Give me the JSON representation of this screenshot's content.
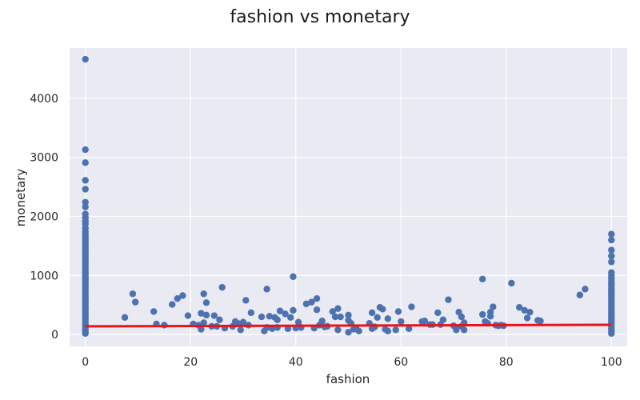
{
  "chart_data": {
    "type": "scatter",
    "title": "fashion vs monetary",
    "xlabel": "fashion",
    "ylabel": "monetary",
    "xlim": [
      -3,
      103
    ],
    "ylim": [
      -200,
      4850
    ],
    "x_ticks": [
      0,
      20,
      40,
      60,
      80,
      100
    ],
    "y_ticks": [
      0,
      1000,
      2000,
      3000,
      4000
    ],
    "grid": true,
    "legend": "none",
    "colors": {
      "points": "#4c72b0",
      "trend": "#e8141a",
      "background": "#eaeaf2",
      "grid": "#ffffff"
    },
    "trend_line": {
      "x": [
        0,
        100
      ],
      "y": [
        140,
        165
      ]
    },
    "series": [
      {
        "points": [
          [
            0,
            4660
          ],
          [
            0,
            3130
          ],
          [
            0,
            2910
          ],
          [
            0,
            2610
          ],
          [
            0,
            2460
          ],
          [
            0,
            2240
          ],
          [
            0,
            2160
          ],
          [
            0,
            2040
          ],
          [
            0,
            1980
          ],
          [
            0,
            1920
          ],
          [
            0,
            1870
          ],
          [
            0,
            1800
          ],
          [
            0,
            1740
          ],
          [
            0,
            1690
          ],
          [
            0,
            1650
          ],
          [
            0,
            1610
          ],
          [
            0,
            1570
          ],
          [
            0,
            1530
          ],
          [
            0,
            1490
          ],
          [
            0,
            1450
          ],
          [
            0,
            1410
          ],
          [
            0,
            1370
          ],
          [
            0,
            1330
          ],
          [
            0,
            1290
          ],
          [
            0,
            1250
          ],
          [
            0,
            1210
          ],
          [
            0,
            1170
          ],
          [
            0,
            1130
          ],
          [
            0,
            1090
          ],
          [
            0,
            1050
          ],
          [
            0,
            1010
          ],
          [
            0,
            970
          ],
          [
            0,
            930
          ],
          [
            0,
            890
          ],
          [
            0,
            850
          ],
          [
            0,
            810
          ],
          [
            0,
            770
          ],
          [
            0,
            730
          ],
          [
            0,
            690
          ],
          [
            0,
            650
          ],
          [
            0,
            610
          ],
          [
            0,
            570
          ],
          [
            0,
            530
          ],
          [
            0,
            490
          ],
          [
            0,
            450
          ],
          [
            0,
            410
          ],
          [
            0,
            370
          ],
          [
            0,
            330
          ],
          [
            0,
            290
          ],
          [
            0,
            250
          ],
          [
            0,
            210
          ],
          [
            0,
            170
          ],
          [
            0,
            130
          ],
          [
            0,
            90
          ],
          [
            0,
            50
          ],
          [
            0,
            20
          ],
          [
            100,
            1700
          ],
          [
            100,
            1600
          ],
          [
            100,
            1430
          ],
          [
            100,
            1330
          ],
          [
            100,
            1230
          ],
          [
            100,
            1050
          ],
          [
            100,
            1000
          ],
          [
            100,
            950
          ],
          [
            100,
            900
          ],
          [
            100,
            860
          ],
          [
            100,
            820
          ],
          [
            100,
            780
          ],
          [
            100,
            740
          ],
          [
            100,
            700
          ],
          [
            100,
            660
          ],
          [
            100,
            620
          ],
          [
            100,
            580
          ],
          [
            100,
            540
          ],
          [
            100,
            500
          ],
          [
            100,
            460
          ],
          [
            100,
            420
          ],
          [
            100,
            380
          ],
          [
            100,
            340
          ],
          [
            100,
            300
          ],
          [
            100,
            260
          ],
          [
            100,
            220
          ],
          [
            100,
            180
          ],
          [
            100,
            140
          ],
          [
            100,
            100
          ],
          [
            100,
            60
          ],
          [
            100,
            20
          ],
          [
            7.5,
            290
          ],
          [
            9,
            690
          ],
          [
            9.5,
            550
          ],
          [
            13,
            390
          ],
          [
            13.5,
            180
          ],
          [
            15,
            160
          ],
          [
            16.5,
            510
          ],
          [
            17.5,
            610
          ],
          [
            18.5,
            660
          ],
          [
            19.5,
            320
          ],
          [
            20.5,
            180
          ],
          [
            21.5,
            160
          ],
          [
            22,
            360
          ],
          [
            22,
            90
          ],
          [
            22.5,
            690
          ],
          [
            22.5,
            200
          ],
          [
            23,
            330
          ],
          [
            23,
            540
          ],
          [
            24,
            140
          ],
          [
            24.5,
            320
          ],
          [
            25,
            140
          ],
          [
            25.5,
            250
          ],
          [
            26,
            800
          ],
          [
            26.5,
            110
          ],
          [
            28,
            140
          ],
          [
            28.5,
            220
          ],
          [
            29,
            190
          ],
          [
            29.5,
            80
          ],
          [
            30,
            210
          ],
          [
            30.5,
            580
          ],
          [
            31,
            160
          ],
          [
            31.5,
            370
          ],
          [
            33.5,
            300
          ],
          [
            34,
            60
          ],
          [
            34.5,
            770
          ],
          [
            34.5,
            120
          ],
          [
            35,
            310
          ],
          [
            35.5,
            100
          ],
          [
            36,
            290
          ],
          [
            36.5,
            250
          ],
          [
            36.5,
            120
          ],
          [
            37,
            400
          ],
          [
            38,
            350
          ],
          [
            38.5,
            100
          ],
          [
            39,
            290
          ],
          [
            39.5,
            410
          ],
          [
            39.5,
            980
          ],
          [
            40,
            110
          ],
          [
            40.5,
            210
          ],
          [
            41,
            120
          ],
          [
            42,
            520
          ],
          [
            43,
            550
          ],
          [
            43.5,
            110
          ],
          [
            44,
            610
          ],
          [
            44,
            420
          ],
          [
            44.5,
            160
          ],
          [
            45,
            230
          ],
          [
            45.5,
            130
          ],
          [
            46,
            140
          ],
          [
            47,
            390
          ],
          [
            47.5,
            300
          ],
          [
            48,
            440
          ],
          [
            48,
            80
          ],
          [
            48.5,
            300
          ],
          [
            50,
            330
          ],
          [
            50,
            240
          ],
          [
            50,
            40
          ],
          [
            50.5,
            190
          ],
          [
            51,
            90
          ],
          [
            51.5,
            100
          ],
          [
            52,
            60
          ],
          [
            54,
            190
          ],
          [
            54.5,
            370
          ],
          [
            54.5,
            100
          ],
          [
            55,
            130
          ],
          [
            55.5,
            290
          ],
          [
            56,
            460
          ],
          [
            56.5,
            430
          ],
          [
            57,
            90
          ],
          [
            57.5,
            270
          ],
          [
            57.5,
            60
          ],
          [
            59,
            80
          ],
          [
            59.5,
            390
          ],
          [
            60,
            220
          ],
          [
            61.5,
            100
          ],
          [
            62,
            470
          ],
          [
            64,
            220
          ],
          [
            64.5,
            230
          ],
          [
            65.5,
            170
          ],
          [
            66,
            170
          ],
          [
            67,
            370
          ],
          [
            67.5,
            170
          ],
          [
            68,
            250
          ],
          [
            69,
            590
          ],
          [
            70,
            150
          ],
          [
            70.5,
            120
          ],
          [
            70.5,
            80
          ],
          [
            71,
            380
          ],
          [
            71.5,
            300
          ],
          [
            71.5,
            140
          ],
          [
            72,
            80
          ],
          [
            72,
            200
          ],
          [
            75.5,
            940
          ],
          [
            75.5,
            340
          ],
          [
            76,
            220
          ],
          [
            76.5,
            190
          ],
          [
            77,
            310
          ],
          [
            77,
            380
          ],
          [
            77.5,
            470
          ],
          [
            78,
            160
          ],
          [
            78.5,
            150
          ],
          [
            79,
            160
          ],
          [
            79.5,
            150
          ],
          [
            81,
            870
          ],
          [
            82.5,
            460
          ],
          [
            83.5,
            410
          ],
          [
            84,
            280
          ],
          [
            84.5,
            380
          ],
          [
            86,
            240
          ],
          [
            86.5,
            230
          ],
          [
            94,
            670
          ],
          [
            95,
            770
          ]
        ]
      }
    ]
  }
}
